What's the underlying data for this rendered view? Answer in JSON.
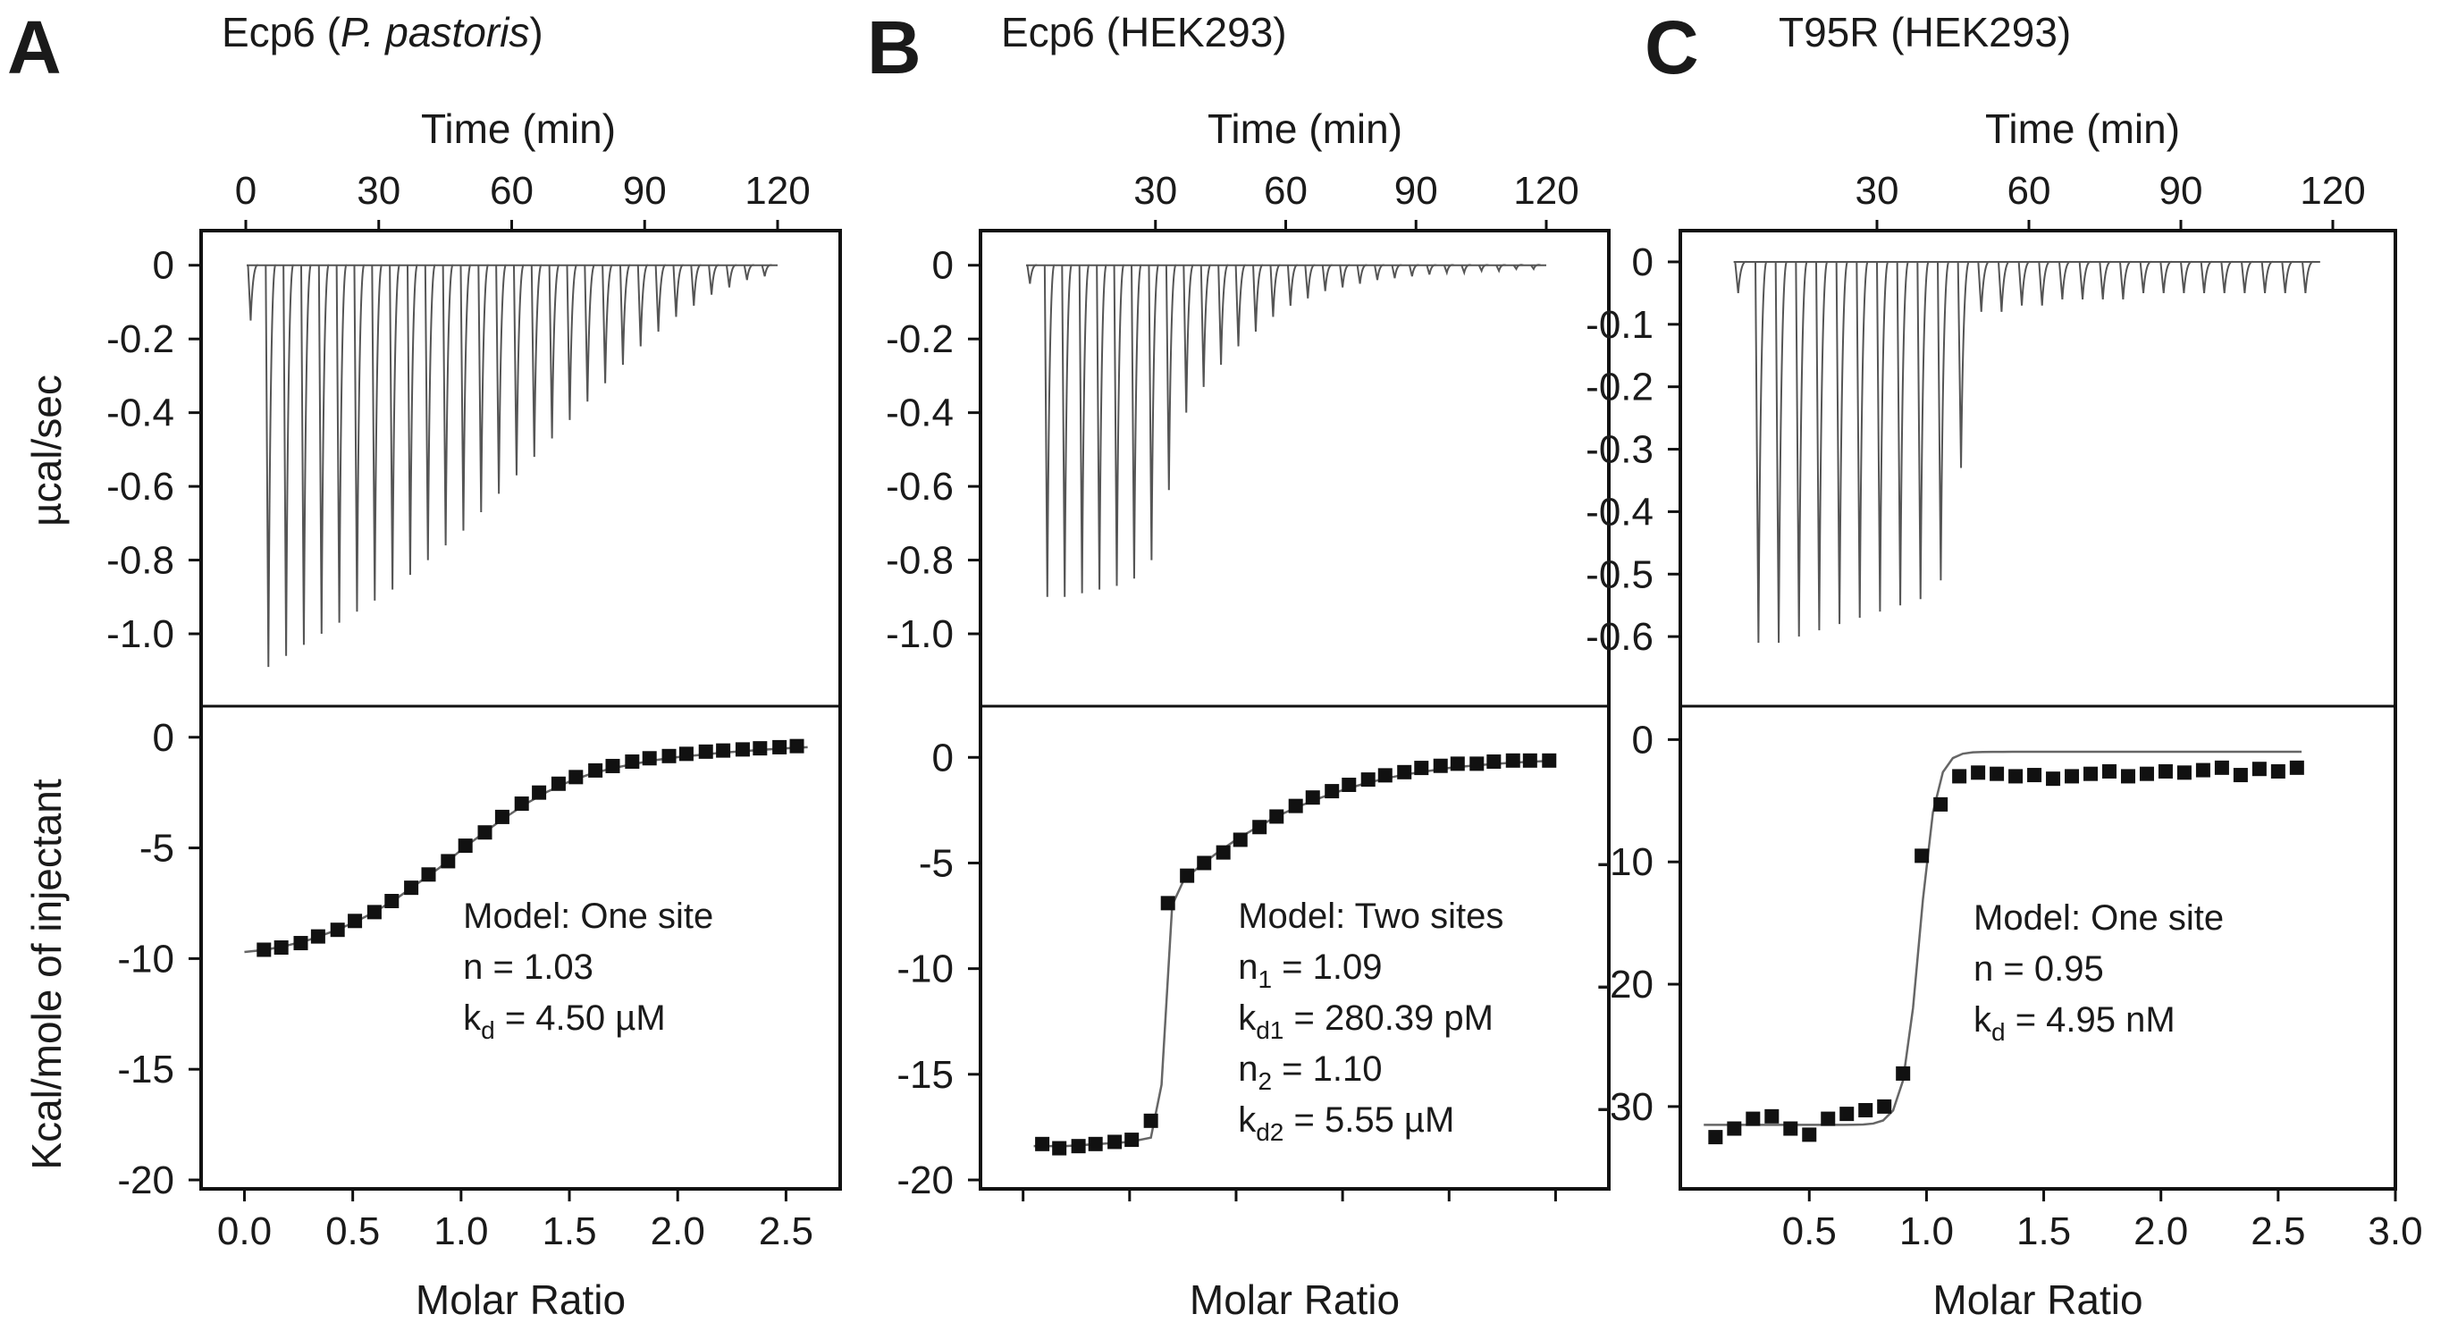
{
  "chart_data": [
    {
      "type": "scatter",
      "panel_letter": "A",
      "title_text": "Ecp6 (",
      "title_italic": "P. pastoris",
      "title_end": ")",
      "top_axis_label": "Time (min)",
      "top_ticks": [
        0,
        30,
        60,
        90,
        120
      ],
      "xlabel": "Molar Ratio",
      "ylabel_top": "µcal/sec",
      "ylabel_bottom": "Kcal/mole of injectant",
      "thermogram": {
        "ylim": [
          -1.16,
          0.06
        ],
        "yticks": [
          0,
          -0.2,
          -0.4,
          -0.6,
          -0.8,
          -1.0
        ],
        "ytick_labels": [
          "0",
          "-0.2",
          "-0.4",
          "-0.6",
          "-0.8",
          "-1.0"
        ],
        "time_range": [
          0,
          120
        ],
        "injection_times": [
          0.5,
          4.5,
          8.5,
          12.5,
          16.5,
          20.5,
          24.5,
          28.5,
          32.5,
          36.5,
          40.5,
          44.5,
          48.5,
          52.5,
          56.5,
          60.5,
          64.5,
          68.5,
          72.5,
          76.5,
          80.5,
          84.5,
          88.5,
          92.5,
          96.5,
          100.5,
          104.5,
          108.5,
          112.5,
          116.5
        ],
        "peaks": [
          -0.15,
          -1.09,
          -1.06,
          -1.03,
          -1.0,
          -0.97,
          -0.94,
          -0.91,
          -0.88,
          -0.84,
          -0.8,
          -0.76,
          -0.72,
          -0.67,
          -0.62,
          -0.57,
          -0.52,
          -0.47,
          -0.42,
          -0.37,
          -0.32,
          -0.27,
          -0.22,
          -0.18,
          -0.14,
          -0.11,
          -0.08,
          -0.06,
          -0.04,
          -0.03
        ]
      },
      "isotherm": {
        "xlim": [
          -0.2,
          2.75
        ],
        "ylim": [
          -20,
          1
        ],
        "xticks": [
          0.0,
          0.5,
          1.0,
          1.5,
          2.0,
          2.5
        ],
        "xtick_labels": [
          "0.0",
          "0.5",
          "1.0",
          "1.5",
          "2.0",
          "2.5"
        ],
        "yticks": [
          0,
          -5,
          -10,
          -15,
          -20
        ],
        "ytick_labels": [
          "0",
          "-5",
          "-10",
          "-15",
          "-20"
        ],
        "x": [
          0.09,
          0.17,
          0.26,
          0.34,
          0.43,
          0.51,
          0.6,
          0.68,
          0.77,
          0.85,
          0.94,
          1.02,
          1.11,
          1.19,
          1.28,
          1.36,
          1.45,
          1.53,
          1.62,
          1.7,
          1.79,
          1.87,
          1.96,
          2.04,
          2.13,
          2.21,
          2.3,
          2.38,
          2.47,
          2.55
        ],
        "y": [
          -9.6,
          -9.5,
          -9.3,
          -9.0,
          -8.7,
          -8.3,
          -7.9,
          -7.4,
          -6.8,
          -6.2,
          -5.6,
          -4.9,
          -4.3,
          -3.6,
          -3.0,
          -2.5,
          -2.1,
          -1.8,
          -1.5,
          -1.3,
          -1.1,
          -0.95,
          -0.85,
          -0.75,
          -0.65,
          -0.6,
          -0.55,
          -0.5,
          -0.45,
          -0.4
        ],
        "fit_x": [
          0.0,
          0.1,
          0.2,
          0.3,
          0.4,
          0.5,
          0.6,
          0.7,
          0.8,
          0.9,
          1.0,
          1.1,
          1.2,
          1.3,
          1.4,
          1.5,
          1.6,
          1.7,
          1.8,
          1.9,
          2.0,
          2.1,
          2.2,
          2.3,
          2.4,
          2.5,
          2.6
        ],
        "fit_y": [
          -9.7,
          -9.6,
          -9.4,
          -9.15,
          -8.8,
          -8.4,
          -7.9,
          -7.3,
          -6.6,
          -5.9,
          -5.1,
          -4.35,
          -3.65,
          -3.0,
          -2.45,
          -2.0,
          -1.65,
          -1.4,
          -1.2,
          -1.03,
          -0.9,
          -0.8,
          -0.7,
          -0.63,
          -0.56,
          -0.5,
          -0.45
        ]
      },
      "model_lines": [
        {
          "main": "Model: One site"
        },
        {
          "main": "n = 1.03"
        },
        {
          "main": "k",
          "sub": "d",
          "rest": " = 4.50 µM"
        }
      ]
    },
    {
      "type": "scatter",
      "panel_letter": "B",
      "title_text": "Ecp6 (HEK293)",
      "title_italic": "",
      "title_end": "",
      "top_axis_label": "Time (min)",
      "top_ticks": [
        30,
        60,
        90,
        120
      ],
      "xlabel": "Molar Ratio",
      "thermogram": {
        "ylim": [
          -1.16,
          0.06
        ],
        "yticks": [
          0,
          -0.2,
          -0.4,
          -0.6,
          -0.8,
          -1.0
        ],
        "ytick_labels": [
          "0",
          "-0.2",
          "-0.4",
          "-0.6",
          "-0.8",
          "-1.0"
        ],
        "time_range": [
          0,
          120
        ],
        "injection_times": [
          0.5,
          4.5,
          8.5,
          12.5,
          16.5,
          20.5,
          24.5,
          28.5,
          32.5,
          36.5,
          40.5,
          44.5,
          48.5,
          52.5,
          56.5,
          60.5,
          64.5,
          68.5,
          72.5,
          76.5,
          80.5,
          84.5,
          88.5,
          92.5,
          96.5,
          100.5,
          104.5,
          108.5,
          112.5,
          116.5
        ],
        "peaks": [
          -0.05,
          -0.9,
          -0.9,
          -0.89,
          -0.88,
          -0.87,
          -0.85,
          -0.8,
          -0.61,
          -0.4,
          -0.33,
          -0.27,
          -0.22,
          -0.18,
          -0.14,
          -0.11,
          -0.09,
          -0.07,
          -0.06,
          -0.05,
          -0.04,
          -0.035,
          -0.03,
          -0.025,
          -0.02,
          -0.02,
          -0.015,
          -0.015,
          -0.01,
          -0.01
        ]
      },
      "isotherm": {
        "xlim": [
          -0.2,
          2.75
        ],
        "ylim": [
          -20,
          2
        ],
        "yticks": [
          0,
          -5,
          -10,
          -15,
          -20
        ],
        "ytick_labels": [
          "0",
          "-5",
          "-10",
          "-15",
          "-20"
        ],
        "x": [
          0.09,
          0.17,
          0.26,
          0.34,
          0.43,
          0.51,
          0.6,
          0.68,
          0.77,
          0.85,
          0.94,
          1.02,
          1.11,
          1.19,
          1.28,
          1.36,
          1.45,
          1.53,
          1.62,
          1.7,
          1.79,
          1.87,
          1.96,
          2.04,
          2.13,
          2.21,
          2.3,
          2.38,
          2.47
        ],
        "y": [
          -18.3,
          -18.5,
          -18.4,
          -18.3,
          -18.2,
          -18.1,
          -17.2,
          -6.9,
          -5.6,
          -5.0,
          -4.5,
          -3.9,
          -3.3,
          -2.8,
          -2.3,
          -1.9,
          -1.6,
          -1.3,
          -1.05,
          -0.85,
          -0.7,
          -0.5,
          -0.4,
          -0.3,
          -0.3,
          -0.2,
          -0.15,
          -0.15,
          -0.15
        ],
        "fit_x": [
          0.05,
          0.2,
          0.35,
          0.5,
          0.6,
          0.65,
          0.7,
          0.75,
          0.8,
          0.9,
          1.0,
          1.1,
          1.2,
          1.3,
          1.4,
          1.5,
          1.6,
          1.7,
          1.8,
          1.9,
          2.0,
          2.1,
          2.2,
          2.3,
          2.4,
          2.5
        ],
        "fit_y": [
          -18.4,
          -18.4,
          -18.3,
          -18.2,
          -18.0,
          -15.5,
          -7.0,
          -5.9,
          -5.4,
          -4.6,
          -3.9,
          -3.3,
          -2.75,
          -2.3,
          -1.9,
          -1.55,
          -1.25,
          -1.0,
          -0.8,
          -0.65,
          -0.5,
          -0.4,
          -0.32,
          -0.25,
          -0.2,
          -0.15
        ]
      },
      "model_lines": [
        {
          "main": "Model: Two sites"
        },
        {
          "main": "n",
          "sub": "1",
          "rest": " = 1.09"
        },
        {
          "main": "k",
          "sub": "d1",
          "rest": " = 280.39 pM"
        },
        {
          "main": "n",
          "sub": "2",
          "rest": " = 1.10"
        },
        {
          "main": "k",
          "sub": "d2",
          "rest": " = 5.55 µM"
        }
      ]
    },
    {
      "type": "scatter",
      "panel_letter": "C",
      "title_text": "T95R (HEK293)",
      "title_italic": "",
      "title_end": "",
      "top_axis_label": "Time (min)",
      "top_ticks": [
        30,
        60,
        90,
        120
      ],
      "xlabel": "Molar Ratio",
      "thermogram": {
        "ylim": [
          -0.69,
          0.03
        ],
        "yticks": [
          0,
          -0.1,
          -0.2,
          -0.3,
          -0.4,
          -0.5,
          -0.6
        ],
        "ytick_labels": [
          "0",
          "-0.1",
          "-0.2",
          "-0.3",
          "-0.4",
          "-0.5",
          "-0.6"
        ],
        "time_range": [
          0,
          120
        ],
        "injection_times": [
          2,
          6,
          10,
          14,
          18,
          22,
          26,
          30,
          34,
          38,
          42,
          46,
          50,
          54,
          58,
          62,
          66,
          70,
          74,
          78,
          82,
          86,
          90,
          94,
          98,
          102,
          106,
          110,
          114
        ],
        "peaks": [
          -0.05,
          -0.61,
          -0.61,
          -0.6,
          -0.59,
          -0.58,
          -0.57,
          -0.56,
          -0.55,
          -0.54,
          -0.51,
          -0.33,
          -0.08,
          -0.08,
          -0.07,
          -0.07,
          -0.06,
          -0.06,
          -0.06,
          -0.06,
          -0.05,
          -0.05,
          -0.05,
          -0.05,
          -0.05,
          -0.05,
          -0.05,
          -0.05,
          -0.05
        ]
      },
      "isotherm": {
        "xlim": [
          -0.05,
          3.0
        ],
        "ylim": [
          -36,
          2
        ],
        "xticks": [
          0.5,
          1.0,
          1.5,
          2.0,
          2.5,
          3.0
        ],
        "xtick_labels": [
          "0.5",
          "1.0",
          "1.5",
          "2.0",
          "2.5",
          "3.0"
        ],
        "yticks": [
          0,
          -10,
          -20,
          -30
        ],
        "ytick_labels": [
          "0",
          "-10",
          "-20",
          "-30"
        ],
        "x": [
          0.1,
          0.18,
          0.26,
          0.34,
          0.42,
          0.5,
          0.58,
          0.66,
          0.74,
          0.82,
          0.9,
          0.98,
          1.06,
          1.14,
          1.22,
          1.3,
          1.38,
          1.46,
          1.54,
          1.62,
          1.7,
          1.78,
          1.86,
          1.94,
          2.02,
          2.1,
          2.18,
          2.26,
          2.34,
          2.42,
          2.5,
          2.58
        ],
        "y": [
          -32.5,
          -31.8,
          -31.0,
          -30.8,
          -31.8,
          -32.3,
          -31.0,
          -30.6,
          -30.3,
          -30.0,
          -27.3,
          -9.5,
          -5.3,
          -3.0,
          -2.7,
          -2.8,
          -3.0,
          -2.9,
          -3.2,
          -3.0,
          -2.8,
          -2.6,
          -3.0,
          -2.8,
          -2.6,
          -2.7,
          -2.5,
          -2.3,
          -2.9,
          -2.4,
          -2.6,
          -2.3
        ]
      },
      "model_lines": [
        {
          "main": "Model: One site"
        },
        {
          "main": "n = 0.95"
        },
        {
          "main": "k",
          "sub": "d",
          "rest": " = 4.95 nM"
        }
      ]
    }
  ]
}
